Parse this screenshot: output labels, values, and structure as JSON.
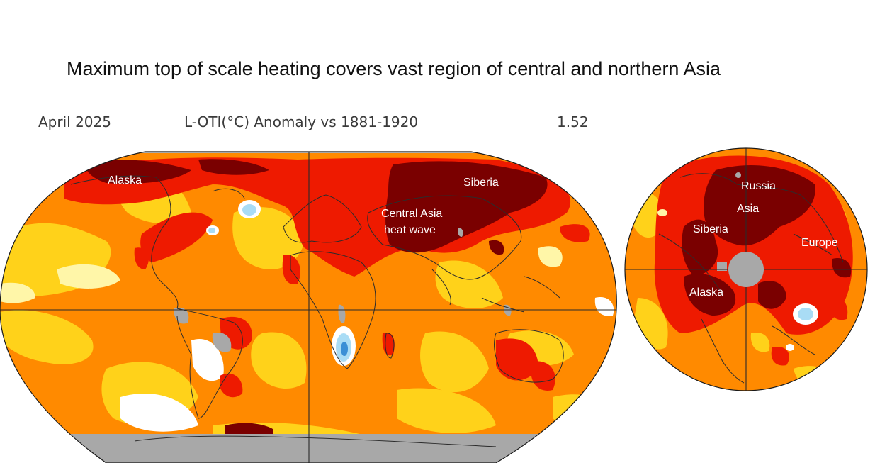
{
  "headline": "Maximum top of scale heating covers vast region of central and northern Asia",
  "subheader": {
    "date": "April 2025",
    "metric": "L-OTI(°C) Anomaly vs 1881-1920",
    "global_mean": "1.52"
  },
  "world_map": {
    "projection": "Robinson-style oval",
    "labels": {
      "alaska": "Alaska",
      "siberia": "Siberia",
      "central_asia_line1": "Central Asia",
      "central_asia_line2": "heat wave"
    }
  },
  "polar_map": {
    "projection": "North polar orthographic",
    "labels": {
      "russia": "Russia",
      "asia": "Asia",
      "siberia": "Siberia",
      "europe": "Europe",
      "alaska": "Alaska"
    }
  },
  "colors": {
    "deep_red": "#7a0000",
    "red": "#ee1a00",
    "orange": "#ff8a00",
    "yellow": "#ffd21a",
    "light_yellow": "#fff6a8",
    "white": "#ffffff",
    "light_blue": "#a9dcf5",
    "gray_no_data": "#a8a8a8"
  }
}
